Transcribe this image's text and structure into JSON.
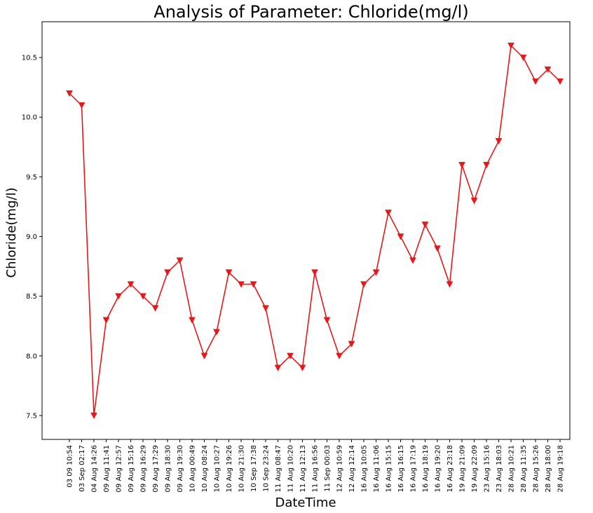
{
  "chart_data": {
    "type": "line",
    "title": "Analysis of Parameter: Chloride(mg/l)",
    "xlabel": "DateTime",
    "ylabel": "Chloride(mg/l)",
    "ylim": [
      7.3,
      10.8
    ],
    "yticks": [
      7.5,
      8.0,
      8.5,
      9.0,
      9.5,
      10.0,
      10.5
    ],
    "ytick_labels": [
      "7.5",
      "8.0",
      "8.5",
      "9.0",
      "9.5",
      "10.0",
      "10.5"
    ],
    "grid": false,
    "marker": "triangle-down",
    "color": "#e31a1c",
    "categories": [
      "03 09 10:54",
      "03 Sep 02:17",
      "04 Aug 14:26",
      "09 Aug 11:41",
      "09 Aug 12:57",
      "09 Aug 15:16",
      "09 Aug 16:29",
      "09 Aug 17:29",
      "09 Aug 18:30",
      "09 Aug 19:30",
      "10 Aug 00:49",
      "10 Aug 08:24",
      "10 Aug 10:27",
      "10 Aug 19:26",
      "10 Aug 21:30",
      "10 Sep 17:38",
      "10 Sep 23:24",
      "11 Aug 08:47",
      "11 Aug 10:20",
      "11 Aug 12:13",
      "11 Aug 16:56",
      "11 Sep 00:03",
      "12 Aug 10:59",
      "12 Aug 12:14",
      "16 Aug 10:05",
      "16 Aug 11:06",
      "16 Aug 15:15",
      "16 Aug 16:15",
      "16 Aug 17:19",
      "16 Aug 18:19",
      "16 Aug 19:20",
      "16 Aug 23:18",
      "19 Aug 21:09",
      "19 Aug 22:09",
      "23 Aug 15:16",
      "23 Aug 18:03",
      "28 Aug 10:21",
      "28 Aug 11:35",
      "28 Aug 15:26",
      "28 Aug 18:00",
      "28 Aug 19:18"
    ],
    "series": [
      {
        "values": [
          10.2,
          10.1,
          7.5,
          8.3,
          8.5,
          8.6,
          8.5,
          8.4,
          8.7,
          8.8,
          8.3,
          8.0,
          8.2,
          8.7,
          8.6,
          8.6,
          8.4,
          7.9,
          8.0,
          7.9,
          8.7,
          8.3,
          8.0,
          8.1,
          8.6,
          8.7,
          9.2,
          9.0,
          8.8,
          9.1,
          8.9,
          8.6,
          9.6,
          9.3,
          9.6,
          9.8,
          10.6,
          10.5,
          10.3,
          10.4,
          10.3
        ]
      }
    ]
  }
}
